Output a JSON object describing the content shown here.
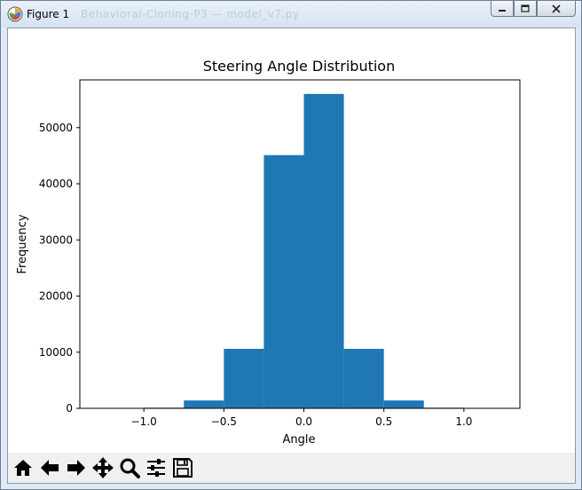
{
  "window": {
    "title": "Figure 1",
    "buttons": {
      "minimize": "minimize-icon",
      "maximize": "maximize-icon",
      "close": "close-icon"
    }
  },
  "toolbar": {
    "tools": [
      "home-icon",
      "back-arrow-icon",
      "forward-arrow-icon",
      "pan-icon",
      "zoom-icon",
      "configure-subplots-icon",
      "save-icon"
    ]
  },
  "colors": {
    "bar": "#1f77b4",
    "window_frame": "#dfe9f5"
  },
  "chart_data": {
    "type": "bar",
    "title": "Steering Angle Distribution",
    "xlabel": "Angle",
    "ylabel": "Frequency",
    "bins": [
      {
        "x0": -1.0,
        "x1": -0.75,
        "value": 120
      },
      {
        "x0": -0.75,
        "x1": -0.5,
        "value": 1400
      },
      {
        "x0": -0.5,
        "x1": -0.25,
        "value": 10600
      },
      {
        "x0": -0.25,
        "x1": 0.0,
        "value": 45100
      },
      {
        "x0": 0.0,
        "x1": 0.25,
        "value": 56000
      },
      {
        "x0": 0.25,
        "x1": 0.5,
        "value": 10600
      },
      {
        "x0": 0.5,
        "x1": 0.75,
        "value": 1400
      },
      {
        "x0": 0.75,
        "x1": 1.0,
        "value": 120
      }
    ],
    "xlim": [
      -1.4,
      1.35
    ],
    "ylim": [
      0,
      58500
    ],
    "xticks": [
      -1.0,
      -0.5,
      0.0,
      0.5,
      1.0
    ],
    "xtick_labels": [
      "−1.0",
      "−0.5",
      "0.0",
      "0.5",
      "1.0"
    ],
    "yticks": [
      0,
      10000,
      20000,
      30000,
      40000,
      50000
    ],
    "ytick_labels": [
      "0",
      "10000",
      "20000",
      "30000",
      "40000",
      "50000"
    ],
    "grid": false,
    "legend": "none"
  }
}
